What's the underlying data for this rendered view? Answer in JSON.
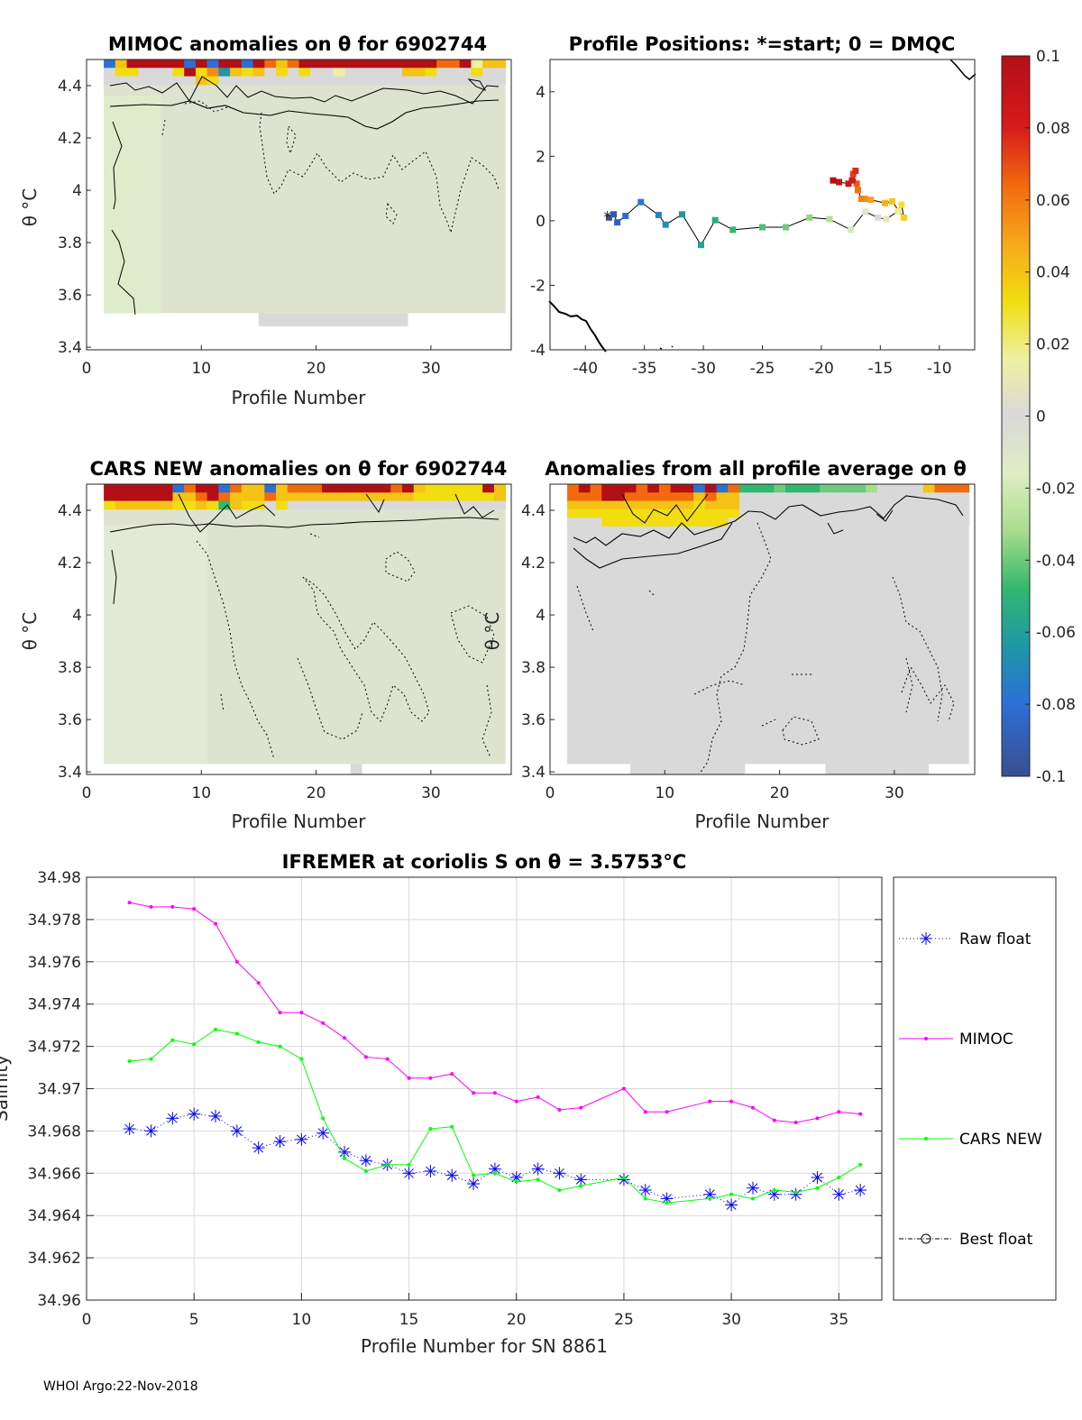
{
  "footer": "WHOI Argo:22-Nov-2018",
  "colorbar": {
    "ticks": [
      "0.1",
      "0.08",
      "0.06",
      "0.04",
      "0.02",
      "0",
      "-0.02",
      "-0.04",
      "-0.06",
      "-0.08",
      "-0.1"
    ],
    "range": [
      -0.1,
      0.1
    ],
    "colormap": "parula-like diverging (blue → green → gray → yellow → red)"
  },
  "chart_data": [
    {
      "type": "heatmap",
      "id": "mimoc",
      "title": "MIMOC anomalies on θ  for 6902744",
      "xlabel": "Profile Number",
      "ylabel": "θ °C",
      "xlim": [
        0,
        37
      ],
      "ylim": [
        3.39,
        4.5
      ],
      "xticks": [
        "0",
        "10",
        "20",
        "30"
      ],
      "yticks": [
        "3.4",
        "3.6",
        "3.8",
        "4",
        "4.2",
        "4.4"
      ],
      "columns": [
        2,
        36
      ],
      "data_bottom": 3.53,
      "top_rows": [
        [
          -0.08,
          0.03,
          0.1,
          0.1,
          0.1,
          0.1,
          0.1,
          -0.08,
          0.1,
          -0.08,
          0.1,
          0.1,
          -0.08,
          0.1,
          0.06,
          0.03,
          0.06,
          0.1,
          0.1,
          0.1,
          0.1,
          0.1,
          0.1,
          0.1,
          0.1,
          0.1,
          0.1,
          0.1,
          0.1,
          0.06,
          0.06,
          0.1,
          0.01,
          0.03,
          0.03
        ],
        [
          0.0,
          0.02,
          0.02,
          0.0,
          0.0,
          0.0,
          0.02,
          0.1,
          0.02,
          0.05,
          -0.06,
          0.03,
          0.02,
          0.03,
          0.0,
          0.02,
          0.0,
          0.02,
          0.0,
          0.0,
          0.01,
          0.0,
          0.0,
          0.0,
          0.0,
          0.0,
          0.03,
          0.03,
          0.02,
          0.0,
          0.0,
          0.0,
          0.02,
          0.0,
          0.0
        ],
        [
          0.0,
          0.0,
          0.0,
          0.0,
          0.0,
          0.0,
          0.0,
          0.0,
          0.03,
          0.02,
          0.0,
          0.0,
          0.0,
          0.0,
          0.0,
          0.0,
          0.0,
          0.0,
          0.0,
          0.0,
          0.0,
          0.0,
          0.0,
          0.0,
          0.0,
          0.0,
          0.0,
          0.0,
          0.0,
          0.0,
          0.0,
          0.0,
          0.0,
          0.0,
          0.0
        ]
      ],
      "background_anomaly": -0.005
    },
    {
      "type": "scatter",
      "id": "positions",
      "title": "Profile Positions: *=start; 0 = DMQC",
      "xlim": [
        -43,
        -7
      ],
      "ylim": [
        -4,
        5
      ],
      "xticks": [
        "-40",
        "-35",
        "-30",
        "-25",
        "-20",
        "-15",
        "-10"
      ],
      "yticks": [
        "-4",
        "-2",
        "0",
        "2",
        "4"
      ],
      "lon": [
        -38.0,
        -37.6,
        -37.3,
        -36.6,
        -35.3,
        -33.8,
        -33.2,
        -31.8,
        -30.2,
        -29.0,
        -27.5,
        -25.0,
        -23.0,
        -21.0,
        -19.3,
        -17.5,
        -16.3,
        -15.2,
        -14.5,
        -13.5,
        -13.2,
        -13.0,
        -14.0,
        -14.6,
        -15.8,
        -16.3,
        -16.6,
        -16.9,
        -17.0,
        -17.3,
        -17.1,
        -17.4,
        -17.7,
        -18.5,
        -19.0
      ],
      "lat": [
        0.1,
        0.2,
        -0.05,
        0.15,
        0.58,
        0.18,
        -0.12,
        0.2,
        -0.75,
        0.02,
        -0.28,
        -0.2,
        -0.2,
        0.1,
        0.05,
        -0.28,
        0.28,
        0.1,
        0.05,
        0.3,
        0.5,
        0.1,
        0.6,
        0.55,
        0.65,
        0.68,
        0.68,
        0.95,
        1.15,
        1.45,
        1.55,
        1.25,
        1.15,
        1.2,
        1.25
      ],
      "colors_by": "profile number"
    },
    {
      "type": "heatmap",
      "id": "cars",
      "title": "CARS NEW anomalies on θ for 6902744",
      "xlabel": "Profile Number",
      "ylabel": "θ °C",
      "xlim": [
        0,
        37
      ],
      "ylim": [
        3.39,
        4.5
      ],
      "xticks": [
        "0",
        "10",
        "20",
        "30"
      ],
      "yticks": [
        "3.4",
        "3.6",
        "3.8",
        "4",
        "4.2",
        "4.4"
      ],
      "columns": [
        2,
        36
      ],
      "data_bottom": 3.43,
      "top_rows": [
        [
          0.1,
          0.1,
          0.1,
          0.1,
          0.1,
          0.1,
          -0.08,
          0.06,
          0.1,
          0.1,
          -0.08,
          0.06,
          0.03,
          0.03,
          -0.08,
          0.03,
          0.06,
          0.06,
          0.06,
          0.1,
          0.1,
          0.1,
          0.1,
          0.1,
          0.1,
          0.06,
          0.1,
          0.03,
          0.02,
          0.02,
          0.02,
          0.02,
          0.02,
          0.1,
          0.03
        ],
        [
          0.1,
          0.1,
          0.1,
          0.1,
          0.1,
          0.1,
          0.03,
          0.03,
          0.06,
          0.1,
          0.06,
          0.03,
          0.03,
          0.03,
          0.06,
          0.03,
          0.03,
          0.03,
          0.03,
          0.03,
          0.03,
          0.03,
          0.03,
          0.03,
          0.03,
          0.03,
          0.03,
          0.02,
          0.02,
          0.02,
          0.02,
          0.02,
          0.02,
          0.02,
          0.03
        ],
        [
          0.02,
          0.03,
          0.03,
          0.03,
          0.03,
          0.03,
          0.02,
          0.02,
          0.03,
          0.02,
          -0.04,
          0.03,
          0.02,
          0.02,
          0.0,
          0.02,
          0.0,
          0.0,
          0.0,
          0.0,
          0.0,
          0.0,
          0.0,
          0.0,
          0.0,
          0.0,
          0.0,
          0.0,
          0.0,
          0.0,
          0.0,
          0.0,
          0.0,
          0.0,
          0.0
        ]
      ],
      "background_anomaly": -0.005
    },
    {
      "type": "heatmap",
      "id": "allprof",
      "title": "Anomalies from all profile average on θ",
      "xlabel": "Profile Number",
      "ylabel": "θ °C",
      "xlim": [
        0,
        37
      ],
      "ylim": [
        3.39,
        4.5
      ],
      "xticks": [
        "0",
        "10",
        "20",
        "30"
      ],
      "yticks": [
        "3.4",
        "3.6",
        "3.8",
        "4",
        "4.2",
        "4.4"
      ],
      "columns": [
        2,
        36
      ],
      "data_bottom": 3.43,
      "top_rows": [
        [
          0.06,
          0.1,
          0.06,
          0.1,
          0.1,
          0.1,
          0.06,
          0.1,
          0.06,
          0.1,
          0.1,
          -0.08,
          0.1,
          -0.08,
          0.06,
          -0.04,
          -0.04,
          -0.04,
          -0.03,
          -0.04,
          -0.04,
          -0.04,
          -0.03,
          -0.03,
          -0.03,
          -0.03,
          -0.02,
          0.0,
          0.0,
          0.0,
          0.0,
          0.03,
          0.06,
          0.06,
          0.06
        ],
        [
          0.06,
          0.06,
          0.06,
          0.1,
          0.1,
          0.06,
          0.06,
          0.06,
          0.06,
          0.06,
          0.06,
          0.03,
          0.06,
          0.03,
          0.03,
          0.0,
          0.0,
          0.0,
          0.0,
          0.0,
          0.0,
          0.0,
          0.0,
          0.0,
          0.0,
          0.0,
          0.0,
          0.0,
          0.0,
          0.0,
          0.0,
          0.0,
          0.0,
          0.0,
          0.0
        ],
        [
          0.03,
          0.03,
          0.03,
          0.03,
          0.03,
          0.03,
          0.03,
          0.03,
          0.03,
          0.03,
          0.03,
          0.02,
          0.03,
          0.03,
          0.03,
          0.0,
          0.0,
          0.0,
          0.0,
          0.0,
          0.0,
          0.0,
          0.0,
          0.0,
          0.0,
          0.0,
          0.0,
          0.0,
          0.0,
          0.0,
          0.0,
          0.0,
          0.0,
          0.0,
          0.0
        ],
        [
          0.02,
          0.02,
          0.02,
          0.02,
          0.02,
          0.02,
          0.02,
          0.02,
          0.02,
          0.02,
          0.02,
          0.02,
          0.02,
          0.02,
          0.02,
          0.0,
          0.0,
          0.0,
          0.0,
          0.0,
          0.0,
          0.0,
          0.0,
          0.0,
          0.0,
          0.0,
          0.0,
          0.0,
          0.0,
          0.0,
          0.0,
          0.0,
          0.0,
          0.0,
          0.0
        ],
        [
          0.0,
          0.0,
          0.0,
          0.02,
          0.02,
          0.02,
          0.02,
          0.02,
          0.02,
          0.02,
          0.02,
          0.02,
          0.02,
          0.02,
          0.0,
          0.0,
          0.0,
          0.0,
          0.0,
          0.0,
          0.0,
          0.0,
          0.0,
          0.0,
          0.0,
          0.0,
          0.0,
          0.0,
          0.0,
          0.0,
          0.0,
          0.0,
          0.0,
          0.0,
          0.0
        ]
      ],
      "background_anomaly": 0.0
    },
    {
      "type": "line",
      "id": "salinity",
      "title": "IFREMER at coriolis S on θ = 3.5753°C",
      "xlabel": "Profile Number for SN 8861",
      "ylabel": "Salinity",
      "xlim": [
        0,
        37
      ],
      "ylim": [
        34.96,
        34.98
      ],
      "xticks": [
        "0",
        "5",
        "10",
        "15",
        "20",
        "25",
        "30",
        "35"
      ],
      "yticks": [
        "34.96",
        "34.962",
        "34.964",
        "34.966",
        "34.968",
        "34.97",
        "34.972",
        "34.974",
        "34.976",
        "34.978",
        "34.98"
      ],
      "grid": true,
      "series": [
        {
          "name": "Raw float",
          "color": "#0000ff",
          "style": "dotted-star",
          "x": [
            2,
            3,
            4,
            5,
            6,
            7,
            8,
            9,
            10,
            11,
            12,
            13,
            14,
            15,
            16,
            17,
            18,
            19,
            20,
            21,
            22,
            23,
            25,
            26,
            27,
            29,
            30,
            31,
            32,
            33,
            34,
            35,
            36
          ],
          "values": [
            34.9681,
            34.968,
            34.9686,
            34.9688,
            34.9687,
            34.968,
            34.9672,
            34.9675,
            34.9676,
            34.9679,
            34.967,
            34.9666,
            34.9664,
            34.966,
            34.9661,
            34.9659,
            34.9655,
            34.9662,
            34.9658,
            34.9662,
            34.966,
            34.9657,
            34.9657,
            34.9652,
            34.9648,
            34.965,
            34.9645,
            34.9653,
            34.965,
            34.965,
            34.9658,
            34.965,
            34.9652
          ]
        },
        {
          "name": "MIMOC",
          "color": "#ff00ff",
          "style": "solid-dot",
          "x": [
            2,
            3,
            4,
            5,
            6,
            7,
            8,
            9,
            10,
            11,
            12,
            13,
            14,
            15,
            16,
            17,
            18,
            19,
            20,
            21,
            22,
            23,
            25,
            26,
            27,
            29,
            30,
            31,
            32,
            33,
            34,
            35,
            36
          ],
          "values": [
            34.9788,
            34.9786,
            34.9786,
            34.9785,
            34.9778,
            34.976,
            34.975,
            34.9736,
            34.9736,
            34.9731,
            34.9724,
            34.9715,
            34.9714,
            34.9705,
            34.9705,
            34.9707,
            34.9698,
            34.9698,
            34.9694,
            34.9696,
            34.969,
            34.9691,
            34.97,
            34.9689,
            34.9689,
            34.9694,
            34.9694,
            34.9691,
            34.9685,
            34.9684,
            34.9686,
            34.9689,
            34.9688
          ]
        },
        {
          "name": "CARS NEW",
          "color": "#00ff00",
          "style": "solid-dot",
          "x": [
            2,
            3,
            4,
            5,
            6,
            7,
            8,
            9,
            10,
            11,
            12,
            13,
            14,
            15,
            16,
            17,
            18,
            19,
            20,
            21,
            22,
            23,
            25,
            26,
            27,
            29,
            30,
            31,
            32,
            33,
            34,
            35,
            36
          ],
          "values": [
            34.9713,
            34.9714,
            34.9723,
            34.9721,
            34.9728,
            34.9726,
            34.9722,
            34.972,
            34.9714,
            34.9686,
            34.9667,
            34.9661,
            34.9664,
            34.9664,
            34.9681,
            34.9682,
            34.9659,
            34.966,
            34.9656,
            34.9657,
            34.9652,
            34.9654,
            34.9658,
            34.9648,
            34.9646,
            34.9648,
            34.965,
            34.9648,
            34.9652,
            34.9651,
            34.9653,
            34.9658,
            34.9664
          ]
        },
        {
          "name": "Best float",
          "color": "#000000",
          "style": "dashdot-circle",
          "x": [],
          "values": []
        }
      ]
    }
  ]
}
